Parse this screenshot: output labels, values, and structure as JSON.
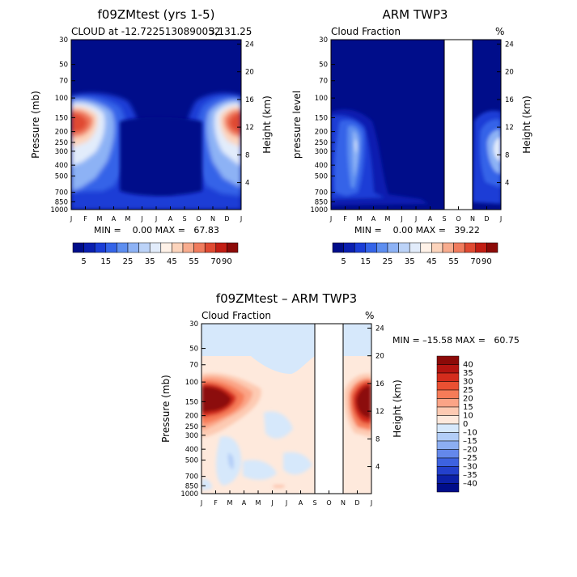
{
  "panels": [
    {
      "title": "f09ZMtest (yrs 1-5)",
      "subtitle_left": "CLOUD at -12.7225130890052",
      "subtitle_right": "3,131.25",
      "ylabel": "Pressure (mb)",
      "ylabel_right": "Height (km)",
      "min_text": "MIN =    0.00 MAX =   67.83",
      "colorbar_labels": [
        "5",
        "15",
        "25",
        "35",
        "45",
        "55",
        "70",
        "90"
      ]
    },
    {
      "title": "ARM TWP3",
      "subtitle_left": "Cloud Fraction",
      "subtitle_right": "%",
      "ylabel": "pressure level",
      "ylabel_right": "Height (km)",
      "min_text": "MIN =    0.00 MAX =   39.22",
      "colorbar_labels": [
        "5",
        "15",
        "25",
        "35",
        "45",
        "55",
        "70",
        "90"
      ]
    },
    {
      "title": "f09ZMtest – ARM TWP3",
      "subtitle_left": "Cloud Fraction",
      "subtitle_right": "%",
      "ylabel": "Pressure (mb)",
      "ylabel_right": "Height (km)",
      "min_text": "MIN = –15.58 MAX =   60.75",
      "colorbar_labels": [
        "40",
        "35",
        "30",
        "25",
        "20",
        "15",
        "10",
        "0",
        "–10",
        "–15",
        "–20",
        "–25",
        "–30",
        "–35",
        "–40"
      ]
    }
  ],
  "colors": {
    "frame": "#000000",
    "missing": "#ffffff",
    "seq_palette": [
      "#000d8a",
      "#0a1fb0",
      "#1a3dd6",
      "#3464e8",
      "#5d8ef0",
      "#8db2f5",
      "#bcd3f8",
      "#e2ecfb",
      "#fff2e8",
      "#fcd4bc",
      "#f8ac8e",
      "#f07c5e",
      "#e04a32",
      "#c21e14",
      "#8c0a08"
    ],
    "div_palette": [
      "#8c0a08",
      "#b41410",
      "#d42c1c",
      "#ea5032",
      "#f67c58",
      "#fba486",
      "#fdcab2",
      "#fee9dc",
      "#d6e8fb",
      "#b2cdf7",
      "#8caef2",
      "#6488eb",
      "#3d62e0",
      "#2340cc",
      "#0c20a8",
      "#000d8a"
    ]
  },
  "chart_data": [
    {
      "type": "heatmap",
      "title": "f09ZMtest (yrs 1-5)",
      "subtitle": "CLOUD at -12.72251308900523,131.25",
      "x": [
        "J",
        "F",
        "M",
        "A",
        "M",
        "J",
        "J",
        "A",
        "S",
        "O",
        "N",
        "D",
        "J"
      ],
      "y_pressure_ticks": [
        30,
        50,
        70,
        100,
        150,
        200,
        250,
        300,
        400,
        500,
        700,
        850,
        1000
      ],
      "y_height_ticks": [
        4,
        8,
        12,
        16,
        20,
        24
      ],
      "ylabel": "Pressure (mb)",
      "ylabel_right": "Height (km)",
      "min": 0.0,
      "max": 67.83,
      "levels": [
        5,
        15,
        25,
        35,
        45,
        55,
        70,
        90
      ]
    },
    {
      "type": "heatmap",
      "title": "ARM TWP3",
      "subtitle": "Cloud Fraction",
      "units": "%",
      "x": [
        "J",
        "F",
        "M",
        "A",
        "M",
        "J",
        "J",
        "A",
        "S",
        "O",
        "N",
        "D",
        "J"
      ],
      "y_pressure_ticks": [
        30,
        50,
        70,
        100,
        150,
        200,
        250,
        300,
        400,
        500,
        700,
        850,
        1000
      ],
      "y_height_ticks": [
        4,
        8,
        12,
        16,
        20,
        24
      ],
      "ylabel": "pressure level",
      "ylabel_right": "Height (km)",
      "missing_months": [
        "O"
      ],
      "min": 0.0,
      "max": 39.22,
      "levels": [
        5,
        15,
        25,
        35,
        45,
        55,
        70,
        90
      ]
    },
    {
      "type": "heatmap",
      "title": "f09ZMtest – ARM TWP3",
      "subtitle": "Cloud Fraction",
      "units": "%",
      "x": [
        "J",
        "F",
        "M",
        "A",
        "M",
        "J",
        "J",
        "A",
        "S",
        "O",
        "N",
        "D",
        "J"
      ],
      "y_pressure_ticks": [
        30,
        50,
        70,
        100,
        150,
        200,
        250,
        300,
        400,
        500,
        700,
        850,
        1000
      ],
      "y_height_ticks": [
        4,
        8,
        12,
        16,
        20,
        24
      ],
      "ylabel": "Pressure (mb)",
      "ylabel_right": "Height (km)",
      "missing_months": [
        "O"
      ],
      "min": -15.58,
      "max": 60.75,
      "levels": [
        -40,
        -35,
        -30,
        -25,
        -20,
        -15,
        -10,
        0,
        10,
        15,
        20,
        25,
        30,
        35,
        40
      ]
    }
  ]
}
